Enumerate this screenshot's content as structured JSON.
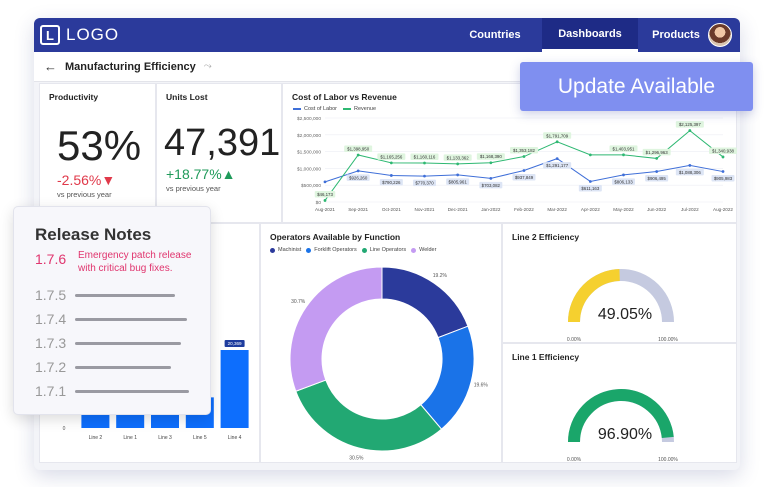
{
  "nav": {
    "logo_letter": "L",
    "logo_text": "LOGO",
    "tabs": [
      {
        "label": "Countries"
      },
      {
        "label": "Dashboards"
      },
      {
        "label": "Products"
      }
    ],
    "active_tab": "Dashboards"
  },
  "page": {
    "title": "Manufacturing Efficiency"
  },
  "productivity": {
    "title": "Productivity",
    "value": "53%",
    "delta": "-2.56%▼",
    "note": "vs previous year"
  },
  "units_lost": {
    "title": "Units Lost",
    "value": "47,391",
    "delta": "+18.77%▲",
    "note": "vs previous year"
  },
  "update_banner": {
    "label": "Update Available"
  },
  "release_notes": {
    "title": "Release Notes",
    "current": {
      "version": "1.7.6",
      "note": "Emergency patch release with critical bug fixes."
    },
    "older": [
      {
        "version": "1.7.5"
      },
      {
        "version": "1.7.4"
      },
      {
        "version": "1.7.3"
      },
      {
        "version": "1.7.2"
      },
      {
        "version": "1.7.1"
      }
    ]
  },
  "colors": {
    "nav": "#2b3a9b",
    "accent": "#7f8ff0",
    "pink": "#e0356e",
    "blue": "#0d6efd",
    "gauge_yellow": "#f5d02f",
    "gauge_green": "#1aa66a"
  },
  "chart_data": [
    {
      "type": "line",
      "title": "Cost of Labor vs Revenue",
      "x": [
        "Aug-2021",
        "Sep-2021",
        "Oct-2021",
        "Nov-2021",
        "Dec-2021",
        "Jan-2022",
        "Feb-2022",
        "Mar-2022",
        "Apr-2022",
        "May-2022",
        "Jun-2022",
        "Jul-2022",
        "Aug-2022"
      ],
      "yticks": [
        "$2,500,000",
        "$2,000,000",
        "$1,500,000",
        "$1,000,000",
        "$500,000",
        "$0"
      ],
      "ylim": [
        0,
        2500000
      ],
      "legend": "top-left",
      "grid": true,
      "series": [
        {
          "name": "Cost of Labor",
          "color": "#3f6fd8",
          "values": [
            600000,
            926260,
            790226,
            770370,
            805961,
            703082,
            937849,
            1291177,
            611163,
            806133,
            906495,
            1088306,
            905983
          ],
          "labels": [
            "",
            "$926,260",
            "$790,226",
            "$770,370",
            "$805,961",
            "$703,082",
            "$937,849",
            "$1,291,177",
            "$611,163",
            "$806,133",
            "$906,495",
            "$1,088,306",
            "$905,983"
          ]
        },
        {
          "name": "Revenue",
          "color": "#2eb872",
          "values": [
            46173,
            1398950,
            1165256,
            1160116,
            1133362,
            1168390,
            1353182,
            1791709,
            1402903,
            1403951,
            1296963,
            2125397,
            1340938
          ],
          "labels": [
            "$46,173",
            "$1,398,950",
            "$1,165,256",
            "$1,160,116",
            "$1,133,362",
            "$1,168,390",
            "$1,353,182",
            "$1,791,709",
            "",
            "$1,403,951",
            "$1,296,963",
            "$2,125,397",
            "$1,340,938"
          ]
        }
      ]
    },
    {
      "type": "bar",
      "categories": [
        "Line 2",
        "Line 1",
        "Line 3",
        "Line 5",
        "Line 4"
      ],
      "values": [
        8000,
        8000,
        8000,
        8000,
        20369
      ],
      "value_labels": [
        "",
        "",
        "",
        "",
        "20,369"
      ],
      "ylim": [
        0,
        20369
      ],
      "color": "#0d6efd"
    },
    {
      "type": "pie",
      "title": "Operators Available by Function",
      "legend": "top",
      "slices": [
        {
          "name": "Machinist",
          "value": 19.2,
          "label": "19.2%",
          "color": "#2b3a9b"
        },
        {
          "name": "Forklift Operators",
          "value": 19.6,
          "label": "19.6%",
          "color": "#1a73e8"
        },
        {
          "name": "Line Operators",
          "value": 30.5,
          "label": "30.5%",
          "color": "#22a873"
        },
        {
          "name": "Welder",
          "value": 30.7,
          "label": "30.7%",
          "color": "#c49bf2"
        }
      ]
    },
    {
      "type": "gauge",
      "title": "Line 2 Efficiency",
      "value": 49.05,
      "label": "49.05%",
      "min_label": "0.00%",
      "max_label": "100.00%",
      "color": "#f5d02f",
      "track": "#c5cae0"
    },
    {
      "type": "gauge",
      "title": "Line 1 Efficiency",
      "value": 96.9,
      "label": "96.90%",
      "min_label": "0.00%",
      "max_label": "100.00%",
      "color": "#1aa66a",
      "track": "#c5cae0"
    }
  ]
}
